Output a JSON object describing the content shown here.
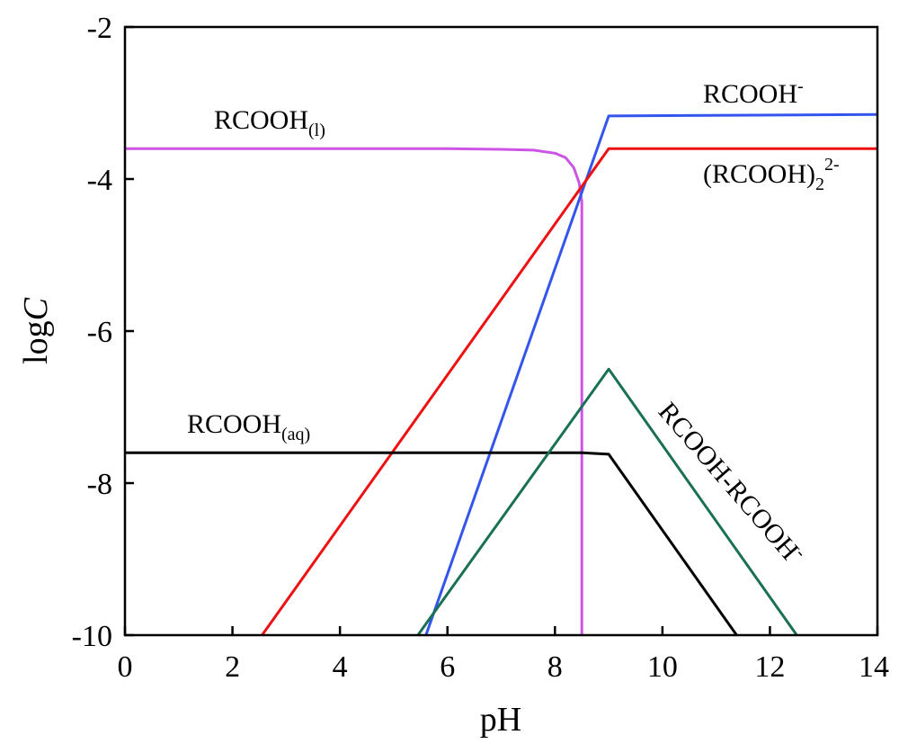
{
  "chart_data": {
    "type": "line",
    "xlabel": "pH",
    "ylabel": {
      "text": "log",
      "italic": "C"
    },
    "xlim": [
      0,
      14
    ],
    "ylim": [
      -10,
      -2
    ],
    "xticks": [
      "0",
      "2",
      "4",
      "6",
      "8",
      "10",
      "12",
      "14"
    ],
    "yticks": [
      "-2",
      "-4",
      "-6",
      "-8",
      "-10"
    ],
    "grid": false,
    "series": [
      {
        "name": "RCOOH(l)",
        "color": "#cc55e6",
        "points": [
          [
            0,
            -3.6
          ],
          [
            6,
            -3.6
          ],
          [
            7,
            -3.61
          ],
          [
            7.6,
            -3.62
          ],
          [
            8.0,
            -3.66
          ],
          [
            8.2,
            -3.72
          ],
          [
            8.35,
            -3.85
          ],
          [
            8.45,
            -4.05
          ],
          [
            8.5,
            -4.3
          ],
          [
            8.5,
            -10
          ]
        ]
      },
      {
        "name": "RCOOH-",
        "color": "#3355ee",
        "points": [
          [
            5.6,
            -10
          ],
          [
            9.0,
            -3.17
          ],
          [
            14,
            -3.15
          ]
        ]
      },
      {
        "name": "(RCOOH)2 2-",
        "color": "#ee1111",
        "points": [
          [
            2.55,
            -10
          ],
          [
            9.0,
            -3.6
          ],
          [
            14,
            -3.6
          ]
        ]
      },
      {
        "name": "RCOOH(aq)",
        "color": "#000000",
        "points": [
          [
            0,
            -7.6
          ],
          [
            8.5,
            -7.6
          ],
          [
            9.0,
            -7.62
          ],
          [
            11.38,
            -10
          ]
        ]
      },
      {
        "name": "RCOOH-RCOOH-",
        "color": "#1a7055",
        "points": [
          [
            5.45,
            -10
          ],
          [
            9.0,
            -6.5
          ],
          [
            12.5,
            -10
          ]
        ]
      }
    ],
    "annotations": [
      {
        "id": "rcooh-l",
        "base": "RCOOH",
        "sub": "(l)",
        "sup": ""
      },
      {
        "id": "rcooh-minus",
        "base": "RCOOH",
        "sub": "",
        "sup": "-"
      },
      {
        "id": "dimer-2minus",
        "base": "(RCOOH)",
        "sub": "2",
        "sup": "2-"
      },
      {
        "id": "rcooh-aq",
        "base": "RCOOH",
        "sub": "(aq)",
        "sup": ""
      },
      {
        "id": "rcooh-rcooh-minus",
        "base": "RCOOH-RCOOH",
        "sub": "",
        "sup": "-"
      }
    ]
  }
}
